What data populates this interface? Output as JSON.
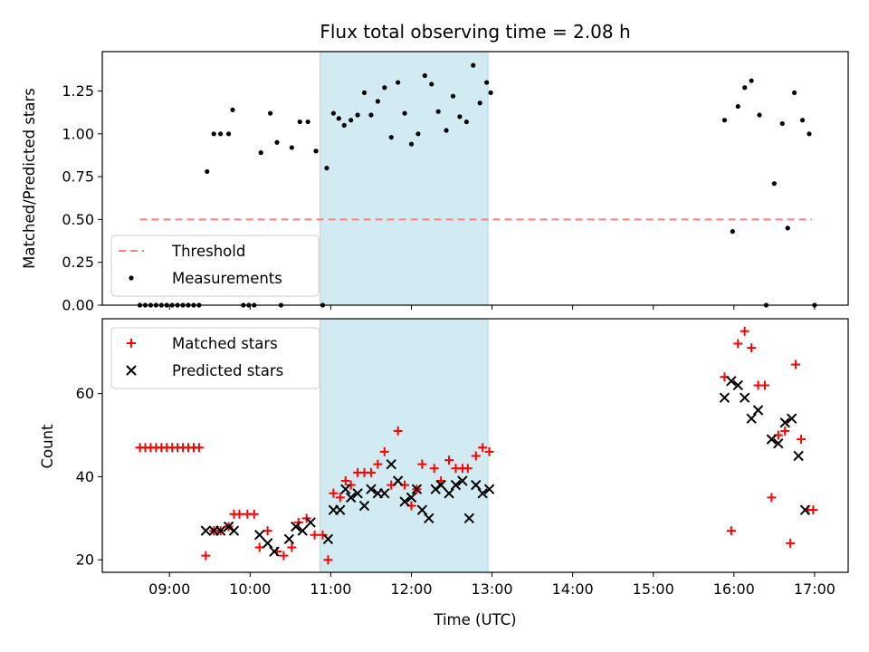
{
  "chart_data": [
    {
      "type": "scatter",
      "title": "Flux total observing time = 2.08 h",
      "xlabel": "",
      "ylabel": "Matched/Predicted stars",
      "xlim": [
        "08:10",
        "17:25"
      ],
      "ylim": [
        0,
        1.48
      ],
      "yticks": [
        "0.00",
        "0.25",
        "0.50",
        "0.75",
        "1.00",
        "1.25"
      ],
      "shaded_span": [
        "10:52",
        "12:57"
      ],
      "shade_color": "#add8e6",
      "legend_position": "lower-left",
      "series": [
        {
          "name": "Threshold",
          "style": "dashed-line",
          "color": "#ff7f7f",
          "points": [
            [
              "08:38",
              0.5
            ],
            [
              "16:58",
              0.5
            ]
          ]
        },
        {
          "name": "Measurements",
          "style": "dot",
          "color": "#000000",
          "points": [
            [
              "08:38",
              0
            ],
            [
              "08:42",
              0
            ],
            [
              "08:46",
              0
            ],
            [
              "08:50",
              0
            ],
            [
              "08:54",
              0
            ],
            [
              "08:58",
              0
            ],
            [
              "09:02",
              0
            ],
            [
              "09:06",
              0
            ],
            [
              "09:10",
              0
            ],
            [
              "09:14",
              0
            ],
            [
              "09:18",
              0
            ],
            [
              "09:22",
              0
            ],
            [
              "09:28",
              0.78
            ],
            [
              "09:33",
              1.0
            ],
            [
              "09:38",
              1.0
            ],
            [
              "09:44",
              1.0
            ],
            [
              "09:47",
              1.14
            ],
            [
              "09:55",
              0
            ],
            [
              "09:59",
              0
            ],
            [
              "10:03",
              0
            ],
            [
              "10:08",
              0.89
            ],
            [
              "10:15",
              1.12
            ],
            [
              "10:20",
              0.95
            ],
            [
              "10:23",
              0
            ],
            [
              "10:31",
              0.92
            ],
            [
              "10:37",
              1.07
            ],
            [
              "10:43",
              1.07
            ],
            [
              "10:49",
              0.9
            ],
            [
              "10:54",
              0
            ],
            [
              "10:57",
              0.8
            ],
            [
              "11:02",
              1.12
            ],
            [
              "11:06",
              1.09
            ],
            [
              "11:10",
              1.05
            ],
            [
              "11:15",
              1.08
            ],
            [
              "11:20",
              1.11
            ],
            [
              "11:25",
              1.24
            ],
            [
              "11:30",
              1.11
            ],
            [
              "11:35",
              1.19
            ],
            [
              "11:40",
              1.27
            ],
            [
              "11:45",
              0.98
            ],
            [
              "11:50",
              1.3
            ],
            [
              "11:55",
              1.12
            ],
            [
              "12:00",
              0.94
            ],
            [
              "12:05",
              1.0
            ],
            [
              "12:10",
              1.34
            ],
            [
              "12:15",
              1.29
            ],
            [
              "12:20",
              1.13
            ],
            [
              "12:26",
              1.02
            ],
            [
              "12:31",
              1.22
            ],
            [
              "12:36",
              1.1
            ],
            [
              "12:41",
              1.07
            ],
            [
              "12:46",
              1.4
            ],
            [
              "12:51",
              1.18
            ],
            [
              "12:56",
              1.3
            ],
            [
              "12:59",
              1.24
            ],
            [
              "15:53",
              1.08
            ],
            [
              "15:59",
              0.43
            ],
            [
              "16:03",
              1.16
            ],
            [
              "16:08",
              1.27
            ],
            [
              "16:13",
              1.31
            ],
            [
              "16:19",
              1.11
            ],
            [
              "16:24",
              0
            ],
            [
              "16:30",
              0.71
            ],
            [
              "16:36",
              1.06
            ],
            [
              "16:40",
              0.45
            ],
            [
              "16:45",
              1.24
            ],
            [
              "16:51",
              1.08
            ],
            [
              "16:56",
              1.0
            ],
            [
              "17:00",
              0
            ]
          ]
        }
      ]
    },
    {
      "type": "scatter",
      "title": "",
      "xlabel": "Time (UTC)",
      "ylabel": "Count",
      "xlim": [
        "08:10",
        "17:25"
      ],
      "ylim": [
        17,
        78
      ],
      "yticks": [
        "20",
        "40",
        "60"
      ],
      "xticks": [
        "09:00",
        "10:00",
        "11:00",
        "12:00",
        "13:00",
        "14:00",
        "15:00",
        "16:00",
        "17:00"
      ],
      "shaded_span": [
        "10:52",
        "12:57"
      ],
      "shade_color": "#add8e6",
      "legend_position": "upper-left",
      "series": [
        {
          "name": "Matched stars",
          "style": "plus",
          "color": "#ff0000",
          "points": [
            [
              "08:38",
              47
            ],
            [
              "08:42",
              47
            ],
            [
              "08:46",
              47
            ],
            [
              "08:50",
              47
            ],
            [
              "08:54",
              47
            ],
            [
              "08:58",
              47
            ],
            [
              "09:02",
              47
            ],
            [
              "09:06",
              47
            ],
            [
              "09:10",
              47
            ],
            [
              "09:14",
              47
            ],
            [
              "09:18",
              47
            ],
            [
              "09:22",
              47
            ],
            [
              "09:27",
              21
            ],
            [
              "09:33",
              27
            ],
            [
              "09:38",
              27
            ],
            [
              "09:44",
              28
            ],
            [
              "09:48",
              31
            ],
            [
              "09:52",
              31
            ],
            [
              "09:58",
              31
            ],
            [
              "10:03",
              31
            ],
            [
              "10:07",
              23
            ],
            [
              "10:13",
              27
            ],
            [
              "10:20",
              22
            ],
            [
              "10:25",
              21
            ],
            [
              "10:31",
              23
            ],
            [
              "10:36",
              29
            ],
            [
              "10:42",
              30
            ],
            [
              "10:48",
              26
            ],
            [
              "10:54",
              26
            ],
            [
              "10:58",
              20
            ],
            [
              "11:02",
              36
            ],
            [
              "11:07",
              35
            ],
            [
              "11:11",
              39
            ],
            [
              "11:15",
              38
            ],
            [
              "11:20",
              41
            ],
            [
              "11:25",
              41
            ],
            [
              "11:30",
              41
            ],
            [
              "11:35",
              43
            ],
            [
              "11:40",
              46
            ],
            [
              "11:45",
              38
            ],
            [
              "11:50",
              51
            ],
            [
              "11:55",
              38
            ],
            [
              "12:00",
              33
            ],
            [
              "12:04",
              37
            ],
            [
              "12:08",
              43
            ],
            [
              "12:17",
              42
            ],
            [
              "12:22",
              39
            ],
            [
              "12:28",
              44
            ],
            [
              "12:33",
              42
            ],
            [
              "12:38",
              42
            ],
            [
              "12:42",
              42
            ],
            [
              "12:48",
              45
            ],
            [
              "12:53",
              47
            ],
            [
              "12:58",
              46
            ],
            [
              "15:53",
              64
            ],
            [
              "15:58",
              27
            ],
            [
              "16:03",
              72
            ],
            [
              "16:08",
              75
            ],
            [
              "16:13",
              71
            ],
            [
              "16:18",
              62
            ],
            [
              "16:23",
              62
            ],
            [
              "16:28",
              35
            ],
            [
              "16:33",
              50
            ],
            [
              "16:38",
              51
            ],
            [
              "16:42",
              24
            ],
            [
              "16:46",
              67
            ],
            [
              "16:50",
              49
            ],
            [
              "16:55",
              32
            ],
            [
              "16:59",
              32
            ]
          ]
        },
        {
          "name": "Predicted stars",
          "style": "x",
          "color": "#000000",
          "points": [
            [
              "09:27",
              27
            ],
            [
              "09:33",
              27
            ],
            [
              "09:38",
              27
            ],
            [
              "09:44",
              28
            ],
            [
              "09:48",
              27
            ],
            [
              "10:07",
              26
            ],
            [
              "10:13",
              24
            ],
            [
              "10:18",
              22
            ],
            [
              "10:29",
              25
            ],
            [
              "10:34",
              28
            ],
            [
              "10:39",
              27
            ],
            [
              "10:45",
              29
            ],
            [
              "10:58",
              25
            ],
            [
              "11:02",
              32
            ],
            [
              "11:07",
              32
            ],
            [
              "11:11",
              37
            ],
            [
              "11:15",
              35
            ],
            [
              "11:20",
              36
            ],
            [
              "11:25",
              33
            ],
            [
              "11:30",
              37
            ],
            [
              "11:35",
              36
            ],
            [
              "11:40",
              36
            ],
            [
              "11:45",
              43
            ],
            [
              "11:50",
              39
            ],
            [
              "11:55",
              34
            ],
            [
              "12:00",
              35
            ],
            [
              "12:04",
              37
            ],
            [
              "12:08",
              32
            ],
            [
              "12:13",
              30
            ],
            [
              "12:18",
              37
            ],
            [
              "12:22",
              38
            ],
            [
              "12:28",
              36
            ],
            [
              "12:33",
              38
            ],
            [
              "12:38",
              39
            ],
            [
              "12:43",
              30
            ],
            [
              "12:48",
              38
            ],
            [
              "12:53",
              36
            ],
            [
              "12:58",
              37
            ],
            [
              "15:53",
              59
            ],
            [
              "15:58",
              63
            ],
            [
              "16:03",
              62
            ],
            [
              "16:08",
              59
            ],
            [
              "16:13",
              54
            ],
            [
              "16:18",
              56
            ],
            [
              "16:28",
              49
            ],
            [
              "16:33",
              48
            ],
            [
              "16:38",
              53
            ],
            [
              "16:43",
              54
            ],
            [
              "16:48",
              45
            ],
            [
              "16:53",
              32
            ]
          ]
        }
      ]
    }
  ]
}
